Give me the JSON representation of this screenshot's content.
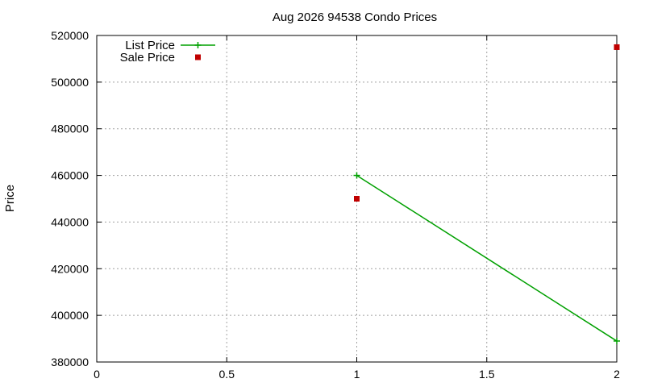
{
  "chart_data": {
    "type": "line",
    "title": "Aug 2026 94538 Condo Prices",
    "xlabel": "",
    "ylabel": "Price",
    "xlim": [
      0,
      2
    ],
    "ylim": [
      380000,
      520000
    ],
    "x_ticks": [
      "0",
      "0.5",
      "1",
      "1.5",
      "2"
    ],
    "y_ticks": [
      "380000",
      "400000",
      "420000",
      "440000",
      "460000",
      "480000",
      "500000",
      "520000"
    ],
    "grid": true,
    "legend_position": "top-left",
    "series": [
      {
        "name": "List Price",
        "style": "line-plus",
        "color": "#00a000",
        "points": [
          {
            "x": 1,
            "y": 460000
          },
          {
            "x": 2,
            "y": 389000
          }
        ]
      },
      {
        "name": "Sale Price",
        "style": "square",
        "color": "#c00000",
        "points": [
          {
            "x": 1,
            "y": 450000
          },
          {
            "x": 2,
            "y": 515000
          }
        ]
      }
    ]
  }
}
